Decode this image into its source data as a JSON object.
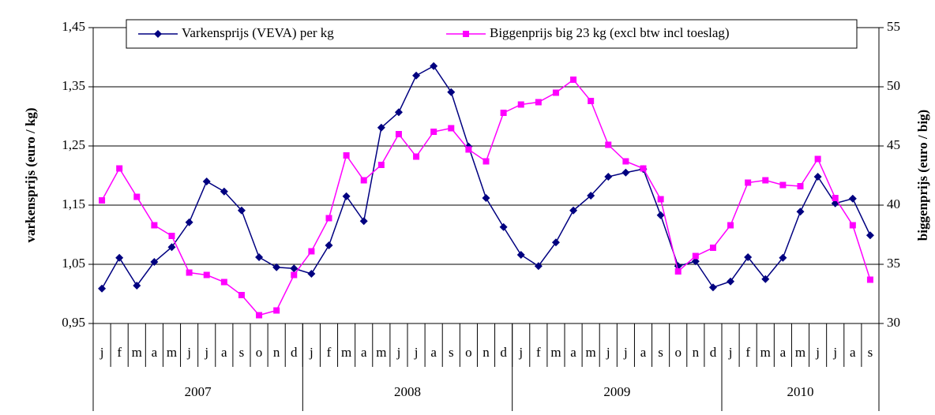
{
  "chart_data": {
    "type": "line",
    "categories": [
      "j",
      "f",
      "m",
      "a",
      "m",
      "j",
      "j",
      "a",
      "s",
      "o",
      "n",
      "d",
      "j",
      "f",
      "m",
      "a",
      "m",
      "j",
      "j",
      "a",
      "s",
      "o",
      "n",
      "d",
      "j",
      "f",
      "m",
      "a",
      "m",
      "j",
      "j",
      "a",
      "s",
      "o",
      "n",
      "d",
      "j",
      "f",
      "m",
      "a",
      "m",
      "j",
      "j",
      "a",
      "s"
    ],
    "years": [
      "2007",
      "2008",
      "2009",
      "2010"
    ],
    "ylabel": "varkensprijs (euro / kg)",
    "y2label": "biggenprijs (euro / big)",
    "ylim": [
      0.95,
      1.45
    ],
    "yticks": [
      {
        "value": 0.95,
        "label": "0,95"
      },
      {
        "value": 1.05,
        "label": "1,05"
      },
      {
        "value": 1.15,
        "label": "1,15"
      },
      {
        "value": 1.25,
        "label": "1,25"
      },
      {
        "value": 1.35,
        "label": "1,35"
      },
      {
        "value": 1.45,
        "label": "1,45"
      }
    ],
    "y2lim": [
      30,
      55
    ],
    "y2ticks": [
      30,
      35,
      40,
      45,
      50,
      55
    ],
    "grid": true,
    "series": [
      {
        "name": "Varkensprijs (VEVA) per kg",
        "color": "#000080",
        "marker": "diamond",
        "values": [
          1.009,
          1.061,
          1.014,
          1.054,
          1.079,
          1.121,
          1.19,
          1.173,
          1.141,
          1.062,
          1.045,
          1.043,
          1.034,
          1.082,
          1.165,
          1.123,
          1.281,
          1.307,
          1.369,
          1.385,
          1.341,
          1.249,
          1.162,
          1.113,
          1.066,
          1.047,
          1.087,
          1.141,
          1.166,
          1.198,
          1.205,
          1.211,
          1.133,
          1.047,
          1.055,
          1.011,
          1.021,
          1.062,
          1.025,
          1.061,
          1.139,
          1.198,
          1.153,
          1.161,
          1.099
        ]
      },
      {
        "name": "Biggenprijs big 23 kg (excl btw incl toeslag)",
        "color": "#ff00ff",
        "marker": "square",
        "axis": "y2",
        "values": [
          40.4,
          43.1,
          40.7,
          38.3,
          37.4,
          34.3,
          34.1,
          33.5,
          32.4,
          30.7,
          31.1,
          34.1,
          36.1,
          38.9,
          44.2,
          42.1,
          43.4,
          46.0,
          44.1,
          46.2,
          46.5,
          44.7,
          43.7,
          47.8,
          48.5,
          48.7,
          49.5,
          50.6,
          48.8,
          45.1,
          43.7,
          43.1,
          40.5,
          34.4,
          35.7,
          36.4,
          38.3,
          41.9,
          42.1,
          41.7,
          41.6,
          43.9,
          40.6,
          38.3,
          33.7
        ]
      }
    ]
  }
}
